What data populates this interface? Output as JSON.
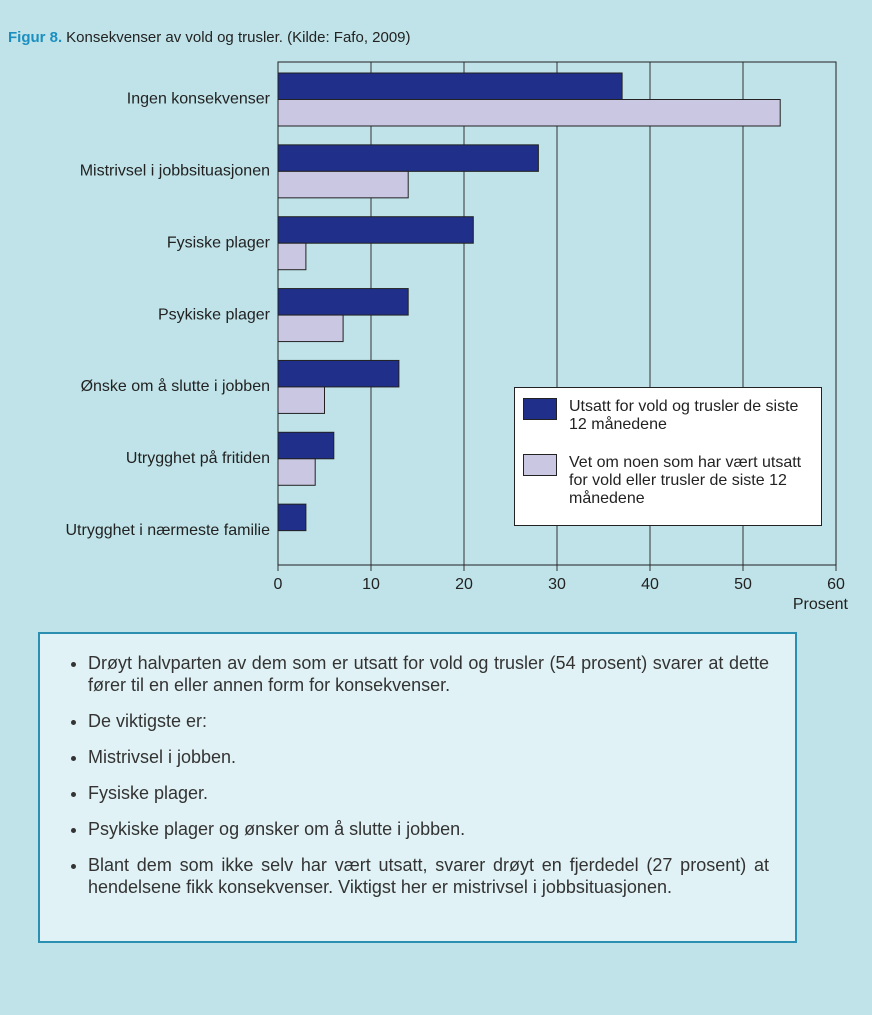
{
  "chart_data": {
    "type": "barh",
    "figure_label": "Figur 8.",
    "title": "Konsekvenser av vold og trusler. (Kilde: Fafo, 2009)",
    "categories": [
      "Ingen konsekvenser",
      "Mistrivsel i jobbsituasjonen",
      "Fysiske plager",
      "Psykiske plager",
      "Ønske om å slutte i jobben",
      "Utrygghet på fritiden",
      "Utrygghet i nærmeste familie"
    ],
    "series": [
      {
        "name": "Utsatt for vold og trusler de siste 12 månedene",
        "color": "#1f2f8a",
        "values": [
          37,
          28,
          21,
          14,
          13,
          6,
          3
        ]
      },
      {
        "name": "Vet om noen som har vært utsatt for vold eller trusler de siste 12 månedene",
        "color": "#c9c7e1",
        "values": [
          54,
          14,
          3,
          7,
          5,
          4,
          null
        ]
      }
    ],
    "xlim": [
      0,
      60
    ],
    "xticks": [
      0,
      10,
      20,
      30,
      40,
      50,
      60
    ],
    "xlabel": "Prosent",
    "grid": true,
    "legend": "lower right"
  },
  "bullets": [
    "Drøyt halvparten av dem som er utsatt for vold og trusler (54 prosent) svarer at dette fører til en eller annen form for konsekvenser.",
    "De viktigste er:",
    "Mistrivsel i jobben.",
    "Fysiske plager.",
    "Psykiske plager og ønsker om å slutte i jobben.",
    "Blant dem som ikke selv har vært utsatt, svarer drøyt en fjerdedel (27 prosent) at hendelsene fikk konsekvenser. Viktigst her er mistrivsel i jobbsituasjonen."
  ]
}
